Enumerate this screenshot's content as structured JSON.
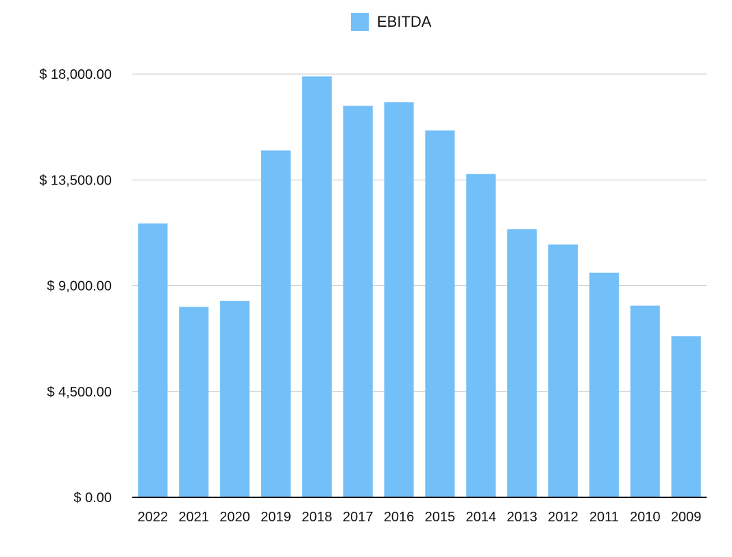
{
  "chart_data": {
    "type": "bar",
    "categories": [
      "2022",
      "2021",
      "2020",
      "2019",
      "2018",
      "2017",
      "2016",
      "2015",
      "2014",
      "2013",
      "2012",
      "2011",
      "2010",
      "2009"
    ],
    "series": [
      {
        "name": "EBITDA",
        "values": [
          11650,
          8100,
          8350,
          14750,
          17900,
          16650,
          16800,
          15600,
          13750,
          11400,
          10750,
          9550,
          8150,
          6850
        ]
      }
    ],
    "y_ticks": [
      "$ 0.00",
      "$ 4,500.00",
      "$ 9,000.00",
      "$ 13,500.00",
      "$ 18,000.00"
    ],
    "y_tick_values": [
      0,
      4500,
      9000,
      13500,
      18000
    ],
    "ylim": [
      0,
      18000
    ],
    "legend_position": "top-center",
    "grid": true,
    "bar_color": "#73bff8"
  }
}
